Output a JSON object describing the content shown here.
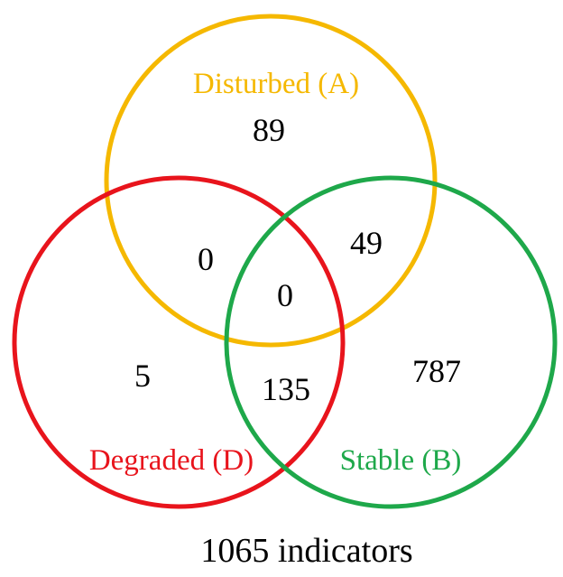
{
  "diagram": {
    "sets": {
      "a": {
        "label": "Disturbed (A)",
        "color": "#F5B800"
      },
      "d": {
        "label": "Degraded (D)",
        "color": "#E8141C"
      },
      "b": {
        "label": "Stable (B)",
        "color": "#1EA84A"
      }
    },
    "regions": {
      "a_only": "89",
      "d_only": "5",
      "b_only": "787",
      "a_d": "0",
      "a_b": "49",
      "d_b": "135",
      "a_d_b": "0"
    },
    "total_label": "1065 indicators"
  }
}
